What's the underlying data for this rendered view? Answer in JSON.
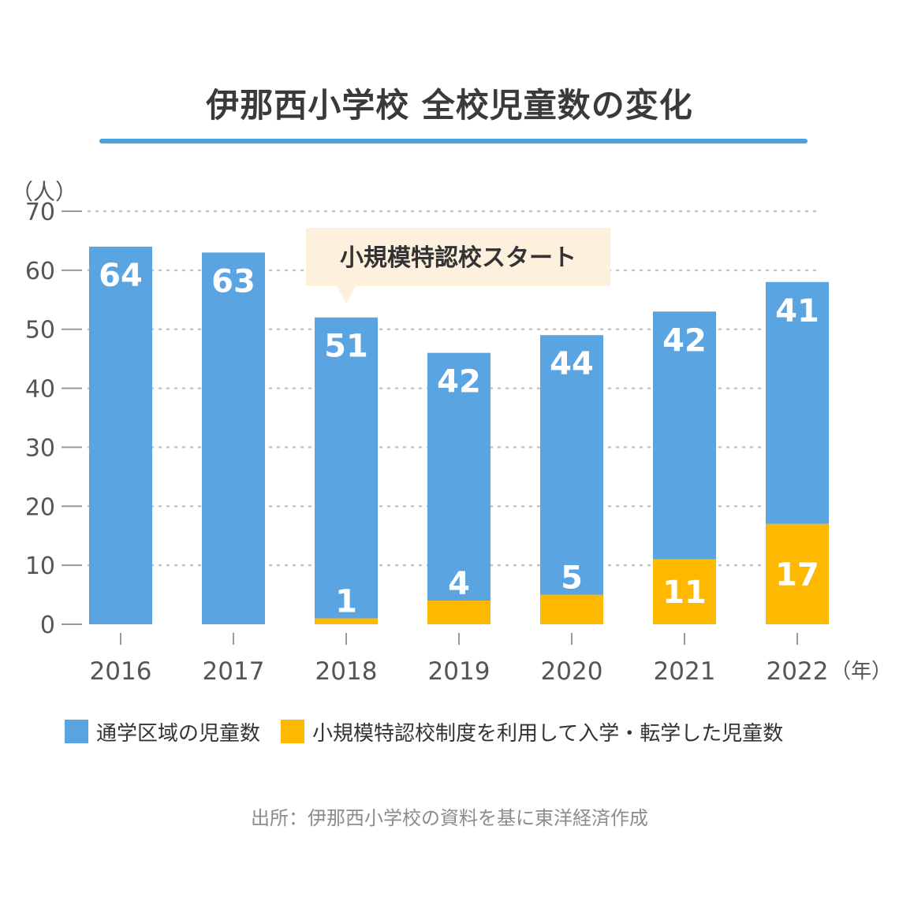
{
  "title": "伊那西小学校 全校児童数の変化",
  "y_unit": "（人）",
  "x_unit": "（年）",
  "annotation": "小規模特認校スタート",
  "source": "出所：伊那西小学校の資料を基に東洋経済作成",
  "colors": {
    "series1": "#5ba4e2",
    "series2": "#fdb900",
    "title_rule": "#4a9fe0",
    "callout_bg": "#fdf0dc"
  },
  "chart_data": {
    "type": "bar",
    "stacked": true,
    "categories": [
      "2016",
      "2017",
      "2018",
      "2019",
      "2020",
      "2021",
      "2022"
    ],
    "series": [
      {
        "name": "小規模特認校制度を利用して入学・転学した児童数",
        "values": [
          0,
          0,
          1,
          4,
          5,
          11,
          17
        ]
      },
      {
        "name": "通学区域の児童数",
        "values": [
          64,
          63,
          51,
          42,
          44,
          42,
          41
        ]
      }
    ],
    "totals": [
      64,
      63,
      52,
      46,
      49,
      53,
      58
    ],
    "ylim": [
      0,
      70
    ],
    "yticks": [
      0,
      10,
      20,
      30,
      40,
      50,
      60,
      70
    ],
    "grid": true,
    "legend": "bottom",
    "annotation_category": "2018"
  }
}
